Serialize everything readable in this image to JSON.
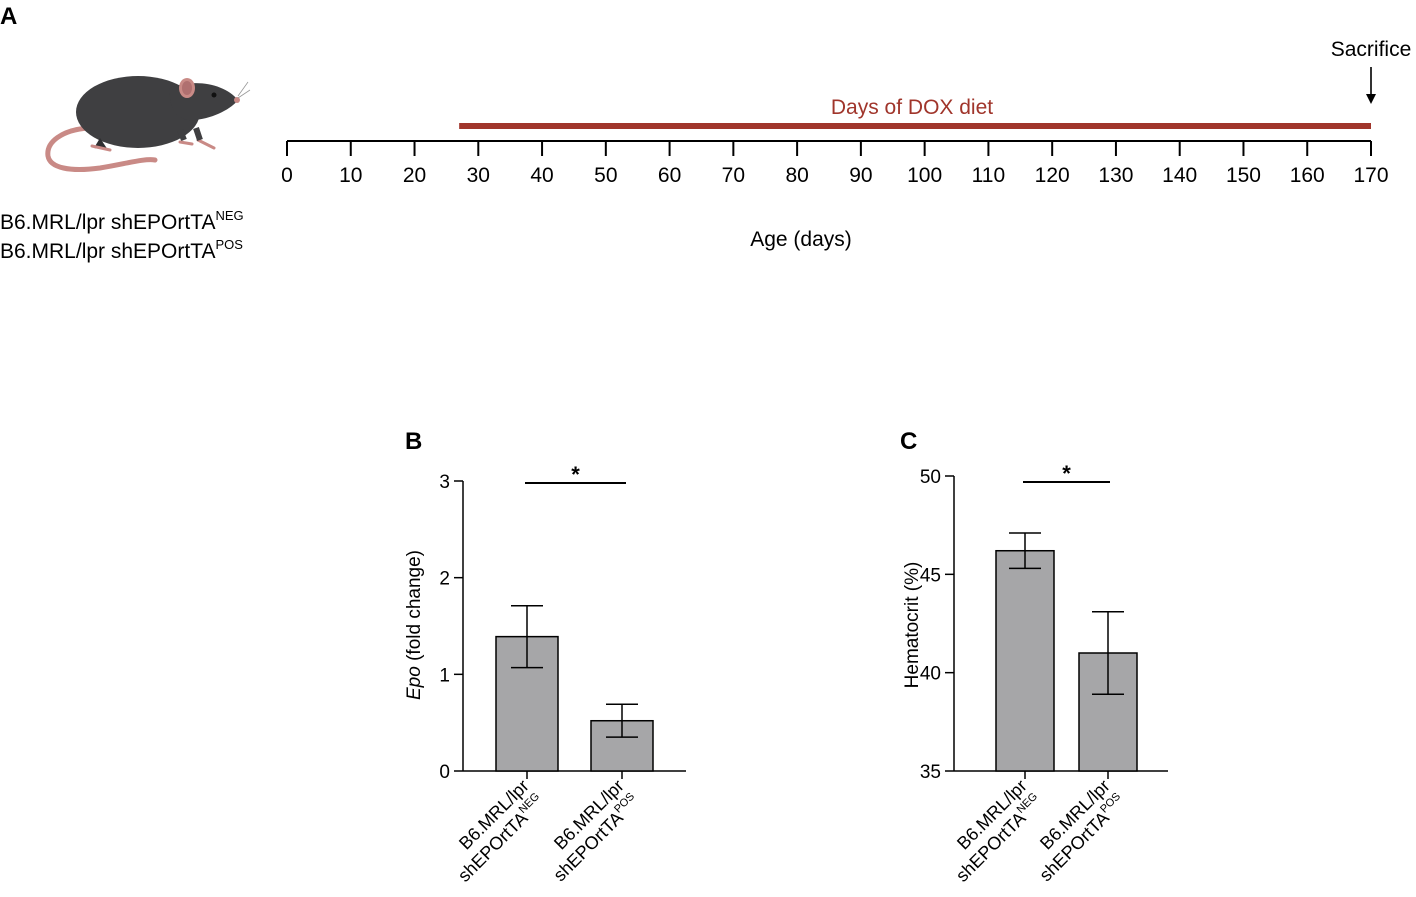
{
  "panelA": {
    "label": "A",
    "dox_label": "Days of DOX diet",
    "sacrifice_label": "Sacrifice",
    "axis_label": "Age (days)",
    "ticks": [
      0,
      10,
      20,
      30,
      40,
      50,
      60,
      70,
      80,
      90,
      100,
      110,
      120,
      130,
      140,
      150,
      160,
      170
    ],
    "dox_start_day": 27,
    "dox_end_day": 170,
    "sacrifice_day": 170,
    "strain_lines": [
      {
        "base": "B6.MRL/lpr shEPOrtTA",
        "sup": "NEG"
      },
      {
        "base": "B6.MRL/lpr shEPOrtTA",
        "sup": "POS"
      }
    ],
    "colors": {
      "dox": "#A0352B",
      "mouse_body": "#3F3F41",
      "mouse_ear": "#C98A86",
      "mouse_tail": "#C98A86"
    }
  },
  "chart_data": [
    {
      "type": "bar",
      "panel_label": "B",
      "ylabel_italic": "Epo",
      "ylabel_rest": " (fold change)",
      "ylim": [
        0,
        3
      ],
      "yticks": [
        0,
        1,
        2,
        3
      ],
      "categories": [
        {
          "line1": "B6.MRL/lpr",
          "line2": "shEPOrtTA",
          "sup": "NEG"
        },
        {
          "line1": "B6.MRL/lpr",
          "line2": "shEPOrtTA",
          "sup": "POS"
        }
      ],
      "values": [
        1.39,
        0.52
      ],
      "errors": [
        0.32,
        0.17
      ],
      "significance": "*",
      "bar_color": "#A6A6A8"
    },
    {
      "type": "bar",
      "panel_label": "C",
      "ylabel_italic": "",
      "ylabel_rest": "Hematocrit (%)",
      "ylim": [
        35,
        50
      ],
      "yticks": [
        35,
        40,
        45,
        50
      ],
      "categories": [
        {
          "line1": "B6.MRL/lpr",
          "line2": "shEPOrtTA",
          "sup": "NEG"
        },
        {
          "line1": "B6.MRL/lpr",
          "line2": "shEPOrtTA",
          "sup": "POS"
        }
      ],
      "values": [
        46.2,
        41.0
      ],
      "errors": [
        0.9,
        2.1
      ],
      "significance": "*",
      "bar_color": "#A6A6A8"
    }
  ]
}
